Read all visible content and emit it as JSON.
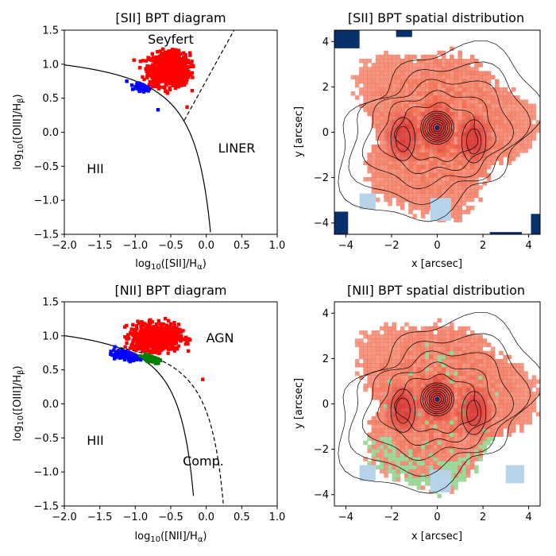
{
  "chart_data": [
    {
      "type": "scatter",
      "title": "[SII] BPT diagram",
      "xlabel": "log10([SII]/Hα)",
      "ylabel": "log10([OIII]/Hβ)",
      "xlim": [
        -2.0,
        1.0
      ],
      "ylim": [
        -1.5,
        1.5
      ],
      "xticks": [
        "−2.0",
        "−1.5",
        "−1.0",
        "−0.5",
        "0.0",
        "0.5",
        "1.0"
      ],
      "yticks": [
        "−1.5",
        "−1.0",
        "−0.5",
        "0.0",
        "0.5",
        "1.0",
        "1.5"
      ],
      "regions": [
        "Seyfert",
        "LINER",
        "HII"
      ],
      "curves": [
        {
          "style": "solid",
          "formula": "y = 0.72/(x-0.32)+1.30",
          "x_range": [
            -2.0,
            0.06
          ]
        },
        {
          "style": "dashed",
          "formula": "y = 1.89x+0.76",
          "x_range": [
            -0.3,
            0.39
          ]
        }
      ],
      "series": [
        {
          "color": "#ff0000",
          "cloud": {
            "x_center": -0.52,
            "y_center": 0.92,
            "x_spread": 0.26,
            "y_spread": 0.22
          }
        },
        {
          "color": "#0000ff",
          "cloud": {
            "x_center": -0.85,
            "y_center": 0.68,
            "x_spread": 0.12,
            "y_spread": 0.05
          }
        }
      ]
    },
    {
      "type": "heatmap",
      "title": "[SII] BPT spatial distribution",
      "xlabel": "x [arcsec]",
      "ylabel": "y [arcsec]",
      "xlim": [
        -4.5,
        4.5
      ],
      "ylim": [
        -4.5,
        4.5
      ],
      "xticks": [
        "−4",
        "−2",
        "0",
        "2",
        "4"
      ],
      "yticks": [
        "−4",
        "−2",
        "0",
        "2",
        "4"
      ],
      "colors": {
        "agn": "#ef6548",
        "hii": "#08306b",
        "light": "#b6d3ea"
      }
    },
    {
      "type": "scatter",
      "title": "[NII] BPT diagram",
      "xlabel": "log10([NII]/Hα)",
      "ylabel": "log10([OIII]/Hβ)",
      "xlim": [
        -2.0,
        1.0
      ],
      "ylim": [
        -1.5,
        1.5
      ],
      "xticks": [
        "−2.0",
        "−1.5",
        "−1.0",
        "−0.5",
        "0.0",
        "0.5",
        "1.0"
      ],
      "yticks": [
        "−1.5",
        "−1.0",
        "−0.5",
        "0.0",
        "0.5",
        "1.0",
        "1.5"
      ],
      "regions": [
        "AGN",
        "HII",
        "Comp."
      ],
      "curves": [
        {
          "style": "solid",
          "formula": "y = 0.61/(x-0.05)+1.30",
          "x_range": [
            -2.0,
            -0.18
          ]
        },
        {
          "style": "dashed",
          "formula": "y = 0.61/(x-0.47)+1.19",
          "x_range": [
            -1.3,
            0.24
          ]
        }
      ],
      "series": [
        {
          "color": "#ff0000",
          "cloud": {
            "x_center": -0.72,
            "y_center": 0.98,
            "x_spread": 0.3,
            "y_spread": 0.17
          }
        },
        {
          "color": "#0000ff",
          "cloud": {
            "x_center": -1.05,
            "y_center": 0.72,
            "x_spread": 0.22,
            "y_spread": 0.06
          }
        },
        {
          "color": "#008000",
          "cloud": {
            "x_center": -0.72,
            "y_center": 0.68,
            "x_spread": 0.13,
            "y_spread": 0.05
          }
        }
      ]
    },
    {
      "type": "heatmap",
      "title": "[NII] BPT spatial distribution",
      "xlabel": "x [arcsec]",
      "ylabel": "y [arcsec]",
      "xlim": [
        -4.5,
        4.5
      ],
      "ylim": [
        -4.5,
        4.5
      ],
      "xticks": [
        "−4",
        "−2",
        "0",
        "2",
        "4"
      ],
      "yticks": [
        "−4",
        "−2",
        "0",
        "2",
        "4"
      ],
      "colors": {
        "agn": "#ef6548",
        "comp": "#8fd18b",
        "light": "#b6d3ea"
      }
    }
  ]
}
